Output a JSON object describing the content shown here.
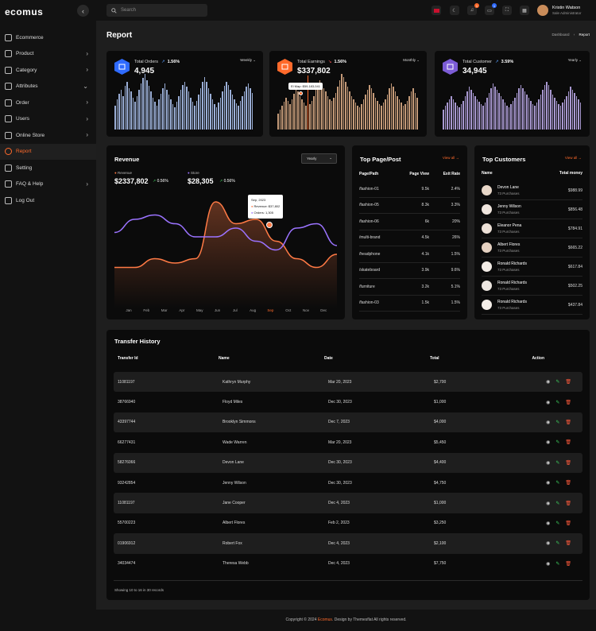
{
  "app": {
    "logo": "ecomus"
  },
  "sidebar": {
    "items": [
      {
        "label": "Ecommerce",
        "chevron": ""
      },
      {
        "label": "Product",
        "chevron": "›"
      },
      {
        "label": "Category",
        "chevron": "›"
      },
      {
        "label": "Attributes",
        "chevron": "⌄"
      },
      {
        "label": "Order",
        "chevron": "›"
      },
      {
        "label": "Users",
        "chevron": "›"
      },
      {
        "label": "Online Store",
        "chevron": "›"
      },
      {
        "label": "Report",
        "chevron": ""
      },
      {
        "label": "Setting",
        "chevron": ""
      },
      {
        "label": "FAQ & Help",
        "chevron": "›"
      },
      {
        "label": "Log Out",
        "chevron": ""
      }
    ]
  },
  "topbar": {
    "search_placeholder": "Search",
    "notif_count": "1",
    "chat_count": "1",
    "user_name": "Kristin Watson",
    "user_role": "Sale Administrator"
  },
  "page": {
    "title": "Report",
    "crumb_home": "Dashboard",
    "crumb_sep": "›",
    "crumb_current": "Report"
  },
  "stats": [
    {
      "title": "Total Orders",
      "change": "1.56%",
      "value": "4,945",
      "period": "Weekly ⌄",
      "icon": "box-icon",
      "color": "#2f6bff",
      "bar_color": "#9aaed6"
    },
    {
      "title": "Total Earnings",
      "change": "1.56%",
      "value": "$337,802",
      "period": "Monthly ⌄",
      "icon": "coin-icon",
      "color": "#ff6a2b",
      "bar_color": "#c49a78",
      "tooltip": "El Map: $59,183,041"
    },
    {
      "title": "Total Customer",
      "change": "3.59%",
      "value": "34,945",
      "period": "Yearly ⌄",
      "icon": "user-icon",
      "color": "#7c5cd6",
      "bar_color": "#a898d0"
    }
  ],
  "revenue": {
    "title": "Revenue",
    "period": "Yearly",
    "legend1": "Revenue",
    "value1": "$2337,802",
    "change1": "0.56%",
    "legend2": "Store",
    "value2": "$28,305",
    "change2": "0.56%",
    "tooltip": {
      "title": "Sep, 2023",
      "line1": "Revenue: $37,802",
      "line2": "Orders: 1,305"
    },
    "months": [
      "Jan",
      "Feb",
      "Mar",
      "Apr",
      "May",
      "Jun",
      "Jul",
      "Aug",
      "Sep",
      "Oct",
      "Nov",
      "Dec"
    ],
    "active_month": "Sep"
  },
  "chart_data": {
    "type": "line",
    "categories": [
      "Jan",
      "Feb",
      "Mar",
      "Apr",
      "May",
      "Jun",
      "Jul",
      "Aug",
      "Sep",
      "Oct",
      "Nov",
      "Dec"
    ],
    "series": [
      {
        "name": "Revenue",
        "color": "#ff7a45",
        "values": [
          0.15,
          0.15,
          0.25,
          0.2,
          0.25,
          0.9,
          0.65,
          0.7,
          0.45,
          0.25,
          0.15,
          0.3
        ]
      },
      {
        "name": "Store",
        "color": "#9b73ff",
        "values": [
          0.55,
          0.7,
          0.75,
          0.65,
          0.5,
          0.5,
          0.6,
          0.45,
          0.35,
          0.6,
          0.65,
          0.4
        ]
      }
    ]
  },
  "pages": {
    "title": "Top Page/Post",
    "view_all": "View all →",
    "headers": [
      "Page/Path",
      "Page View",
      "Exit Rate"
    ],
    "rows": [
      [
        "/fashion-01",
        "9.5k",
        "2.4%"
      ],
      [
        "/fashion-05",
        "8.3k",
        "3.3%"
      ],
      [
        "/fashion-06",
        "6k",
        "20%"
      ],
      [
        "/multi-brand",
        "4.5k",
        "26%"
      ],
      [
        "/headphone",
        "4.1k",
        "1.5%"
      ],
      [
        "/skateboard",
        "3.9k",
        "9.6%"
      ],
      [
        "/furniture",
        "3.2k",
        "5.1%"
      ],
      [
        "/fashion-03",
        "1.5k",
        "1.5%"
      ]
    ]
  },
  "customers": {
    "title": "Top Customers",
    "view_all": "View all →",
    "head_name": "Name",
    "head_total": "Total money",
    "rows": [
      {
        "name": "Devon Lane",
        "sub": "73 Purchases",
        "amount": "$988.99"
      },
      {
        "name": "Jenny Wilson",
        "sub": "73 Purchases",
        "amount": "$856.48"
      },
      {
        "name": "Eleanor Pena",
        "sub": "73 Purchases",
        "amount": "$784.91"
      },
      {
        "name": "Albert Flores",
        "sub": "73 Purchases",
        "amount": "$665.22"
      },
      {
        "name": "Ronald Richards",
        "sub": "73 Purchases",
        "amount": "$617.84"
      },
      {
        "name": "Ronald Richards",
        "sub": "73 Purchases",
        "amount": "$502.25"
      },
      {
        "name": "Ronald Richards",
        "sub": "73 Purchases",
        "amount": "$437.84"
      }
    ]
  },
  "transfers": {
    "title": "Transfer History",
    "headers": [
      "Transfer Id",
      "Name",
      "Date",
      "Total",
      "Action"
    ],
    "rows": [
      [
        "11081197",
        "Kathryn Murphy",
        "Mar 20, 2023",
        "$2,700"
      ],
      [
        "38766940",
        "Floyd Miles",
        "Dec 30, 2023",
        "$1,000"
      ],
      [
        "43397744",
        "Brooklyn Simmons",
        "Dec 7, 2023",
        "$4,000"
      ],
      [
        "66277431",
        "Wade Warren",
        "Mar 20, 2023",
        "$5,450"
      ],
      [
        "58276066",
        "Devon Lane",
        "Dec 30, 2023",
        "$4,400"
      ],
      [
        "93242854",
        "Jenny Wilson",
        "Dec 30, 2023",
        "$4,750"
      ],
      [
        "11081197",
        "Jane Cooper",
        "Dec 4, 2023",
        "$1,000"
      ],
      [
        "55700223",
        "Albert Flores",
        "Feb 2, 2023",
        "$3,250"
      ],
      [
        "01906912",
        "Robert Fox",
        "Dec 4, 2023",
        "$2,100"
      ],
      [
        "34034474",
        "Theresa Webb",
        "Dec 4, 2023",
        "$7,750"
      ]
    ],
    "footer_note": "Showing 10 to 16 in 30 records"
  },
  "footer": {
    "pre": "Copyright © 2024 ",
    "brand": "Ecomus",
    "post": ". Design by Themesflat All rights reserved."
  }
}
